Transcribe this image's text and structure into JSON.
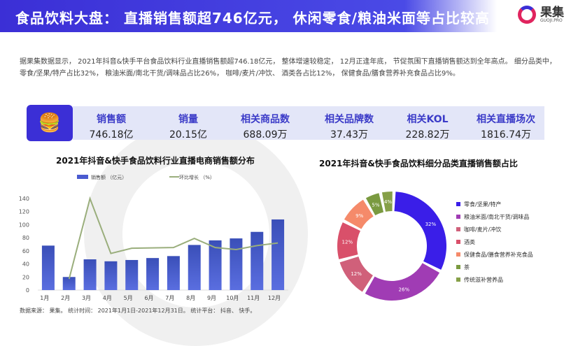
{
  "header": {
    "title": "食品饮料大盘： 直播销售额超746亿元， 休闲零食/粮油米面等占比较高",
    "logo_text": "果集",
    "logo_sub": "GUOJI.PRO",
    "icon": "burger-drink-icon"
  },
  "intro": "据果集数据显示， 2021年抖音&快手平台食品饮料行业直播销售额超746.18亿元， 整体增速较稳定， 12月正逢年底， 节促氛围下直播销售额达到全年高点。 细分品类中， 零食/坚果/特产占比32%， 粮油米面/南北干货/调味品占比26%， 咖啡/麦片/冲饮、 酒类各占比12%， 保健食品/膳食营养补充食品占比9%。",
  "kpis": [
    {
      "label": "销售额",
      "value": "746.18亿"
    },
    {
      "label": "销量",
      "value": "20.15亿"
    },
    {
      "label": "相关商品数",
      "value": "688.09万"
    },
    {
      "label": "相关品牌数",
      "value": "37.43万"
    },
    {
      "label": "相关KOL",
      "value": "228.82万"
    },
    {
      "label": "相关直播场次",
      "value": "1816.74万"
    }
  ],
  "footnote": "数据来源： 果集。 统计时间： 2021年1月1日-2021年12月31日。 统计平台： 抖音、 快手。",
  "chart_data": [
    {
      "type": "bar",
      "title": "2021年抖音&快手食品饮料行业直播电商销售额分布",
      "categories": [
        "1月",
        "2月",
        "3月",
        "4月",
        "5月",
        "6月",
        "7月",
        "8月",
        "9月",
        "10月",
        "11月",
        "12月"
      ],
      "series": [
        {
          "name": "销售额 （亿元）",
          "type": "bar",
          "color": "#4a5bd0",
          "values": [
            68,
            20,
            47,
            44,
            46,
            49,
            52,
            69,
            76,
            79,
            89,
            108
          ]
        },
        {
          "name": "环比增长 （%）",
          "type": "line",
          "color": "#9aae7c",
          "values": [
            null,
            17,
            140,
            56,
            64,
            64.5,
            65,
            79,
            65,
            62,
            68,
            72
          ]
        }
      ],
      "ylim": [
        0,
        140
      ],
      "yticks": [
        0,
        20,
        40,
        60,
        80,
        100,
        120,
        140
      ],
      "legend": "top"
    },
    {
      "type": "pie",
      "title": "2021年抖音&快手食品饮料细分品类直播销售额占比",
      "donut": true,
      "legend": "right",
      "slices": [
        {
          "label": "零食/坚果/特产",
          "value": 32,
          "color": "#3a1ee8"
        },
        {
          "label": "粮油米面/南北干货/调味品",
          "value": 26,
          "color": "#a03cb4"
        },
        {
          "label": "咖啡/麦片/冲饮",
          "value": 12,
          "color": "#d0607a"
        },
        {
          "label": "酒类",
          "value": 12,
          "color": "#d9506a"
        },
        {
          "label": "保健食品/膳食营养补充食品",
          "value": 9,
          "color": "#f58a6a"
        },
        {
          "label": "茶",
          "value": 5,
          "color": "#7a9a40"
        },
        {
          "label": "传统滋补营养品",
          "value": 4,
          "color": "#86a048"
        }
      ]
    }
  ]
}
